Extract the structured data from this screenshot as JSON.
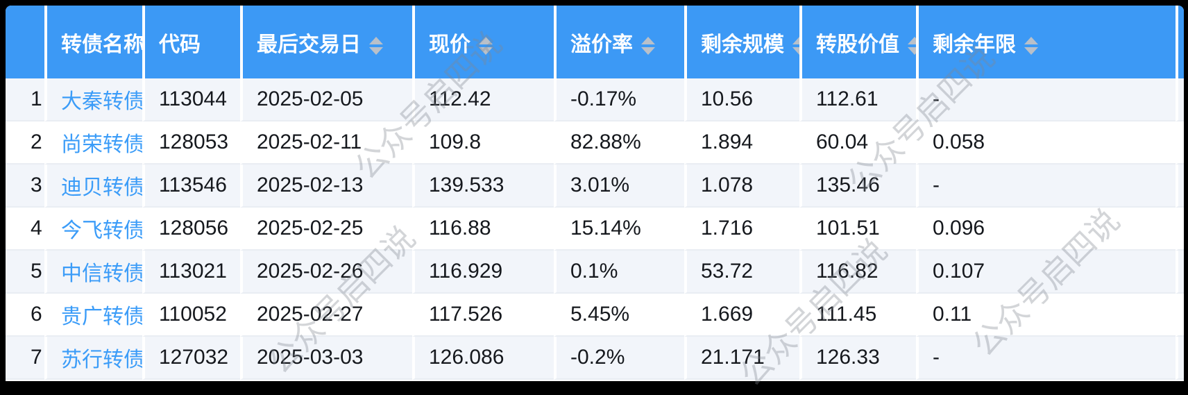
{
  "table": {
    "columns": [
      {
        "key": "index",
        "label": "",
        "sortable": false
      },
      {
        "key": "name",
        "label": "转债名称",
        "sortable": false
      },
      {
        "key": "code",
        "label": "代码",
        "sortable": false
      },
      {
        "key": "last_trade_date",
        "label": "最后交易日",
        "sortable": true
      },
      {
        "key": "price",
        "label": "现价",
        "sortable": true
      },
      {
        "key": "premium_rate",
        "label": "溢价率",
        "sortable": true
      },
      {
        "key": "remaining_size",
        "label": "剩余规模",
        "sortable": true
      },
      {
        "key": "conversion_value",
        "label": "转股价值",
        "sortable": true
      },
      {
        "key": "remaining_years",
        "label": "剩余年限",
        "sortable": true
      },
      {
        "key": "spacer",
        "label": "",
        "sortable": false
      }
    ],
    "rows": [
      {
        "index": "1",
        "name": "大秦转债",
        "code": "113044",
        "last_trade_date": "2025-02-05",
        "price": "112.42",
        "premium_rate": "-0.17%",
        "remaining_size": "10.56",
        "conversion_value": "112.61",
        "remaining_years": "-",
        "spacer": ""
      },
      {
        "index": "2",
        "name": "尚荣转债",
        "code": "128053",
        "last_trade_date": "2025-02-11",
        "price": "109.8",
        "premium_rate": "82.88%",
        "remaining_size": "1.894",
        "conversion_value": "60.04",
        "remaining_years": "0.058",
        "spacer": ""
      },
      {
        "index": "3",
        "name": "迪贝转债",
        "code": "113546",
        "last_trade_date": "2025-02-13",
        "price": "139.533",
        "premium_rate": "3.01%",
        "remaining_size": "1.078",
        "conversion_value": "135.46",
        "remaining_years": "-",
        "spacer": ""
      },
      {
        "index": "4",
        "name": "今飞转债",
        "code": "128056",
        "last_trade_date": "2025-02-25",
        "price": "116.88",
        "premium_rate": "15.14%",
        "remaining_size": "1.716",
        "conversion_value": "101.51",
        "remaining_years": "0.096",
        "spacer": ""
      },
      {
        "index": "5",
        "name": "中信转债",
        "code": "113021",
        "last_trade_date": "2025-02-26",
        "price": "116.929",
        "premium_rate": "0.1%",
        "remaining_size": "53.72",
        "conversion_value": "116.82",
        "remaining_years": "0.107",
        "spacer": ""
      },
      {
        "index": "6",
        "name": "贵广转债",
        "code": "110052",
        "last_trade_date": "2025-02-27",
        "price": "117.526",
        "premium_rate": "5.45%",
        "remaining_size": "1.669",
        "conversion_value": "111.45",
        "remaining_years": "0.11",
        "spacer": ""
      },
      {
        "index": "7",
        "name": "苏行转债",
        "code": "127032",
        "last_trade_date": "2025-03-03",
        "price": "126.086",
        "premium_rate": "-0.2%",
        "remaining_size": "21.171",
        "conversion_value": "126.33",
        "remaining_years": "-",
        "spacer": ""
      }
    ]
  },
  "watermark": {
    "text": "公众号启四说"
  },
  "colors": {
    "header_bg": "#3c99f5",
    "link_blue": "#3b9cf8",
    "row_alt_bg": "#f2f5fa",
    "row_bg": "#ffffff",
    "sort_arrow": "#b9c0c9",
    "frame_bg": "#000000"
  },
  "icons": {
    "sort": "sort-arrows-icon"
  }
}
